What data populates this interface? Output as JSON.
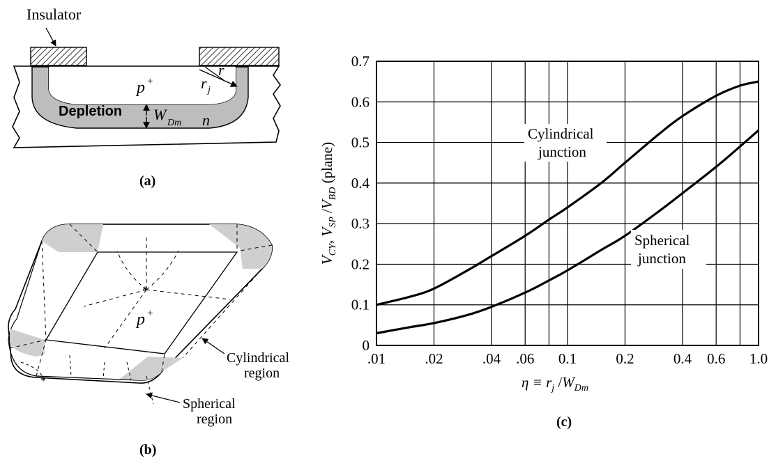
{
  "panel_a": {
    "label": "(a)",
    "insulator": "Insulator",
    "p_plus": "p",
    "plus": "+",
    "r": "r",
    "rj": "r",
    "rj_sub": "j",
    "depletion": "Depletion",
    "wdm": "W",
    "wdm_sub": "Dm",
    "n": "n"
  },
  "panel_b": {
    "label": "(b)",
    "p_plus": "p",
    "plus": "+",
    "cyl_line1": "Cylindrical",
    "cyl_line2": "region",
    "sph_line1": "Spherical",
    "sph_line2": "region"
  },
  "panel_c": {
    "label": "(c)",
    "cyl_label_1": "Cylindrical",
    "cyl_label_2": "junction",
    "sph_label_1": "Spherical",
    "sph_label_2": "junction",
    "ylabel": "V_CY, V_SP / V_BD (plane)",
    "xlabel": "η ≡ r_j / W_Dm"
  },
  "chart_data": {
    "type": "line",
    "xscale": "log",
    "xlim": [
      0.01,
      1.0
    ],
    "ylim": [
      0,
      0.7
    ],
    "grid": true,
    "xticks": [
      ".01",
      ".02",
      ".04",
      ".06",
      "0.1",
      "0.2",
      "0.4",
      "0.6",
      "1.0"
    ],
    "xtick_values": [
      0.01,
      0.02,
      0.04,
      0.06,
      0.1,
      0.2,
      0.4,
      0.6,
      1.0
    ],
    "xgrid_values": [
      0.01,
      0.02,
      0.04,
      0.06,
      0.08,
      0.1,
      0.2,
      0.4,
      0.6,
      0.8,
      1.0
    ],
    "yticks": [
      "0",
      "0.1",
      "0.2",
      "0.3",
      "0.4",
      "0.5",
      "0.6",
      "0.7"
    ],
    "ytick_values": [
      0,
      0.1,
      0.2,
      0.3,
      0.4,
      0.5,
      0.6,
      0.7
    ],
    "series": [
      {
        "key": "cylindrical",
        "x": [
          0.01,
          0.015,
          0.02,
          0.03,
          0.04,
          0.06,
          0.08,
          0.1,
          0.15,
          0.2,
          0.3,
          0.4,
          0.6,
          0.8,
          1.0
        ],
        "y": [
          0.1,
          0.12,
          0.14,
          0.185,
          0.22,
          0.27,
          0.31,
          0.34,
          0.4,
          0.45,
          0.52,
          0.565,
          0.615,
          0.64,
          0.65
        ]
      },
      {
        "key": "spherical",
        "x": [
          0.01,
          0.015,
          0.02,
          0.03,
          0.04,
          0.06,
          0.08,
          0.1,
          0.15,
          0.2,
          0.3,
          0.4,
          0.6,
          0.8,
          1.0
        ],
        "y": [
          0.03,
          0.045,
          0.055,
          0.075,
          0.095,
          0.13,
          0.16,
          0.185,
          0.235,
          0.27,
          0.33,
          0.375,
          0.44,
          0.49,
          0.53
        ]
      }
    ]
  }
}
